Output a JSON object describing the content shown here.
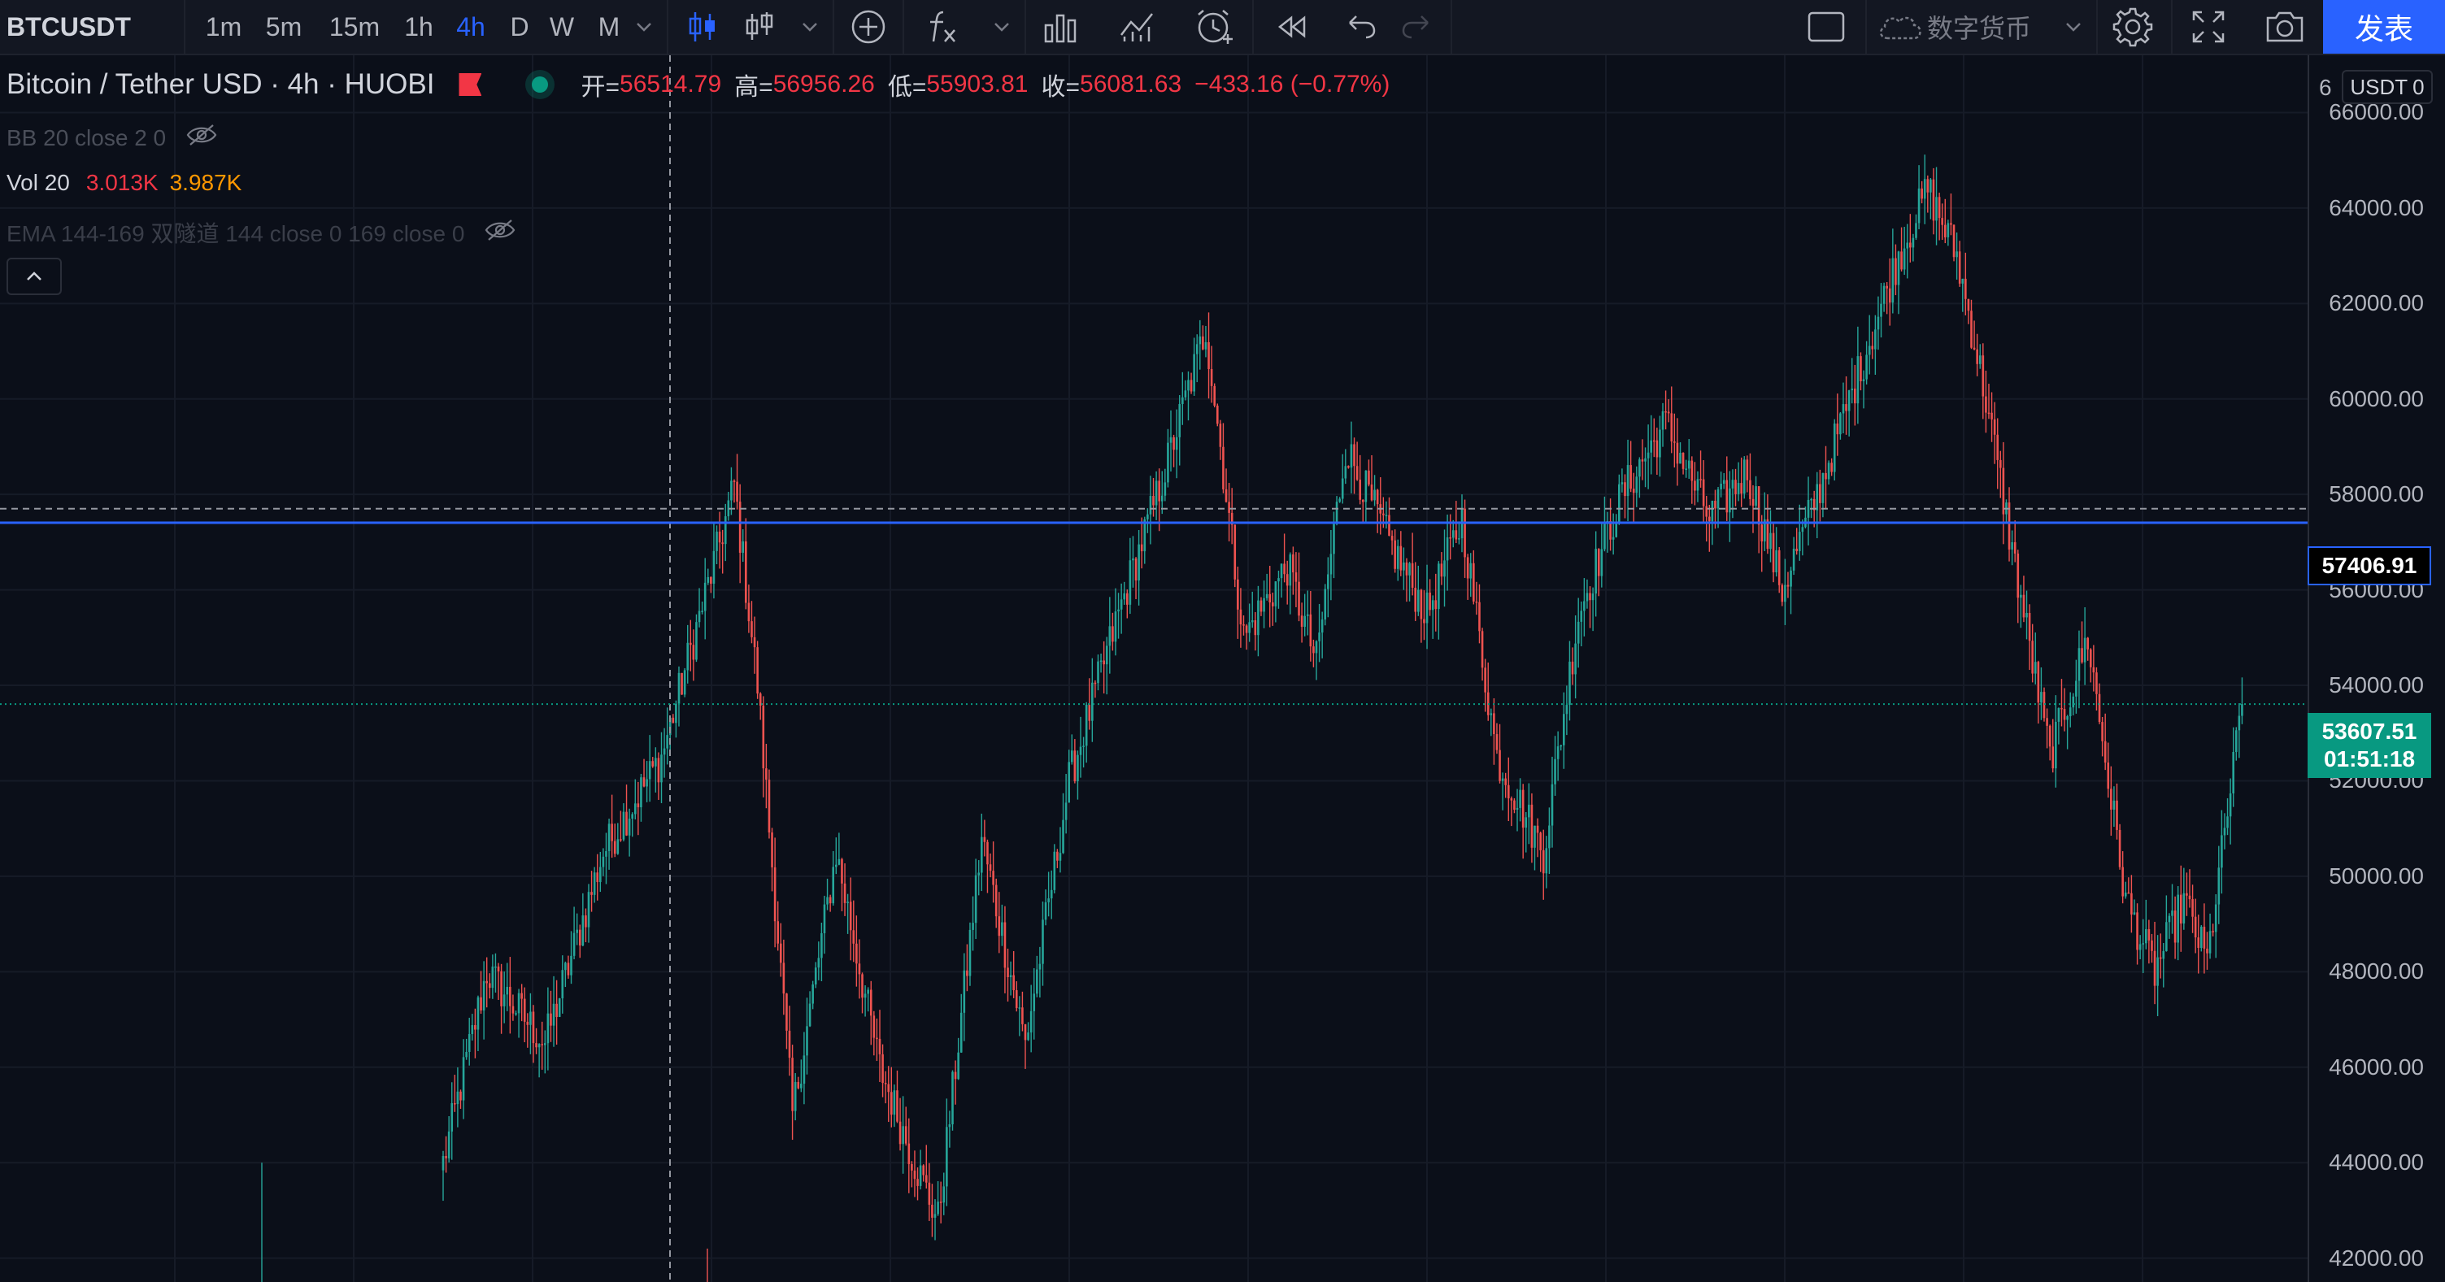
{
  "toolbar": {
    "symbol": "BTCUSDT",
    "intervals": [
      "1m",
      "5m",
      "15m",
      "1h",
      "4h",
      "D",
      "W",
      "M"
    ],
    "active_interval": "4h",
    "market_label": "数字货币",
    "publish_label": "发表",
    "icons": [
      "candles-icon",
      "bar-style-icon",
      "chevron-down-icon",
      "plus-circle-icon",
      "indicator-fx-icon",
      "chevron-down-icon",
      "compare-bars-icon",
      "strategy-chart-icon",
      "alert-clock-icon",
      "replay-icon",
      "undo-icon",
      "redo-icon",
      "layout-square-icon",
      "cloud-icon",
      "chevron-down-icon",
      "settings-gear-icon",
      "fullscreen-icon",
      "camera-icon"
    ]
  },
  "legend": {
    "title": "Bitcoin / Tether USD · 4h · HUOBI",
    "open_label": "开=",
    "open": "56514.79",
    "high_label": "高=",
    "high": "56956.26",
    "low_label": "低=",
    "low": "55903.81",
    "close_label": "收=",
    "close": "56081.63",
    "change": "−433.16 (−0.77%)",
    "bb": "BB 20 close 2 0",
    "vol_label": "Vol 20",
    "vol_value1": "3.013K",
    "vol_value2": "3.987K",
    "ema": "EMA 144-169 双隧道 144 close 0 169 close 0"
  },
  "price_scale": {
    "currency": "USDT",
    "currency_partial": "6",
    "ticks": [
      "66000.00",
      "64000.00",
      "62000.00",
      "60000.00",
      "58000.00",
      "56000.00",
      "54000.00",
      "52000.00",
      "50000.00",
      "48000.00",
      "46000.00",
      "44000.00",
      "42000.00"
    ],
    "hline_price": "57406.91",
    "last_price": "53607.51",
    "countdown": "01:51:18"
  },
  "colors": {
    "background": "#0b0f19",
    "up": "#26a69a",
    "down": "#ef5350",
    "hline": "#2962ff",
    "accent": "#2962ff"
  },
  "chart_data": {
    "type": "candlestick",
    "interval": "4h",
    "ylim": [
      41500,
      67200
    ],
    "horizontal_line": 57406.91,
    "last_price": 53607.51,
    "segments": [
      [
        0,
        44000
      ],
      [
        15,
        48000
      ],
      [
        35,
        46500
      ],
      [
        55,
        50500
      ],
      [
        75,
        52500
      ],
      [
        95,
        57000
      ],
      [
        100,
        58200
      ],
      [
        108,
        54000
      ],
      [
        120,
        45000
      ],
      [
        135,
        50500
      ],
      [
        150,
        46000
      ],
      [
        162,
        44000
      ],
      [
        170,
        42800
      ],
      [
        185,
        50800
      ],
      [
        200,
        46500
      ],
      [
        215,
        52000
      ],
      [
        232,
        55500
      ],
      [
        248,
        58500
      ],
      [
        262,
        61500
      ],
      [
        275,
        55000
      ],
      [
        290,
        56500
      ],
      [
        300,
        54500
      ],
      [
        310,
        59000
      ],
      [
        325,
        57000
      ],
      [
        338,
        55500
      ],
      [
        350,
        57500
      ],
      [
        362,
        52500
      ],
      [
        378,
        50500
      ],
      [
        390,
        55500
      ],
      [
        405,
        58000
      ],
      [
        420,
        59500
      ],
      [
        435,
        57500
      ],
      [
        448,
        58500
      ],
      [
        460,
        56000
      ],
      [
        472,
        58000
      ],
      [
        486,
        60500
      ],
      [
        500,
        63000
      ],
      [
        510,
        64400
      ],
      [
        520,
        63000
      ],
      [
        530,
        60000
      ],
      [
        540,
        56500
      ],
      [
        552,
        52500
      ],
      [
        565,
        55000
      ],
      [
        578,
        49500
      ],
      [
        588,
        48000
      ],
      [
        598,
        49500
      ],
      [
        606,
        48200
      ],
      [
        618,
        53600
      ]
    ]
  }
}
